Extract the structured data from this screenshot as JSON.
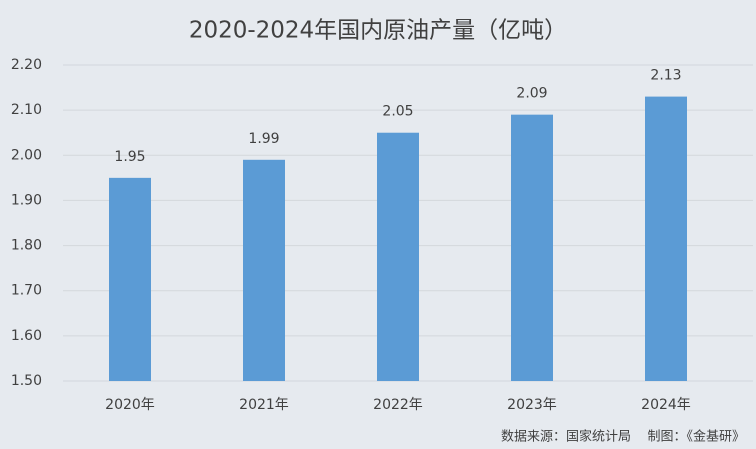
{
  "chart_data": {
    "type": "bar",
    "title": "2020-2024年国内原油产量（亿吨）",
    "categories": [
      "2020年",
      "2021年",
      "2022年",
      "2023年",
      "2024年"
    ],
    "values": [
      1.95,
      1.99,
      2.05,
      2.09,
      2.13
    ],
    "color": "#5b9bd5",
    "ylim": [
      1.5,
      2.2
    ],
    "yticks": [
      {
        "value": 1.5,
        "label": "1.50"
      },
      {
        "value": 1.6,
        "label": "1.60"
      },
      {
        "value": 1.7,
        "label": "1.70"
      },
      {
        "value": 1.8,
        "label": "1.80"
      },
      {
        "value": 1.9,
        "label": "1.90"
      },
      {
        "value": 2.0,
        "label": "2.00"
      },
      {
        "value": 2.1,
        "label": "2.10"
      },
      {
        "value": 2.2,
        "label": "2.20"
      }
    ],
    "grid": true,
    "source": "数据来源：国家统计局    制图：《金基研》"
  }
}
